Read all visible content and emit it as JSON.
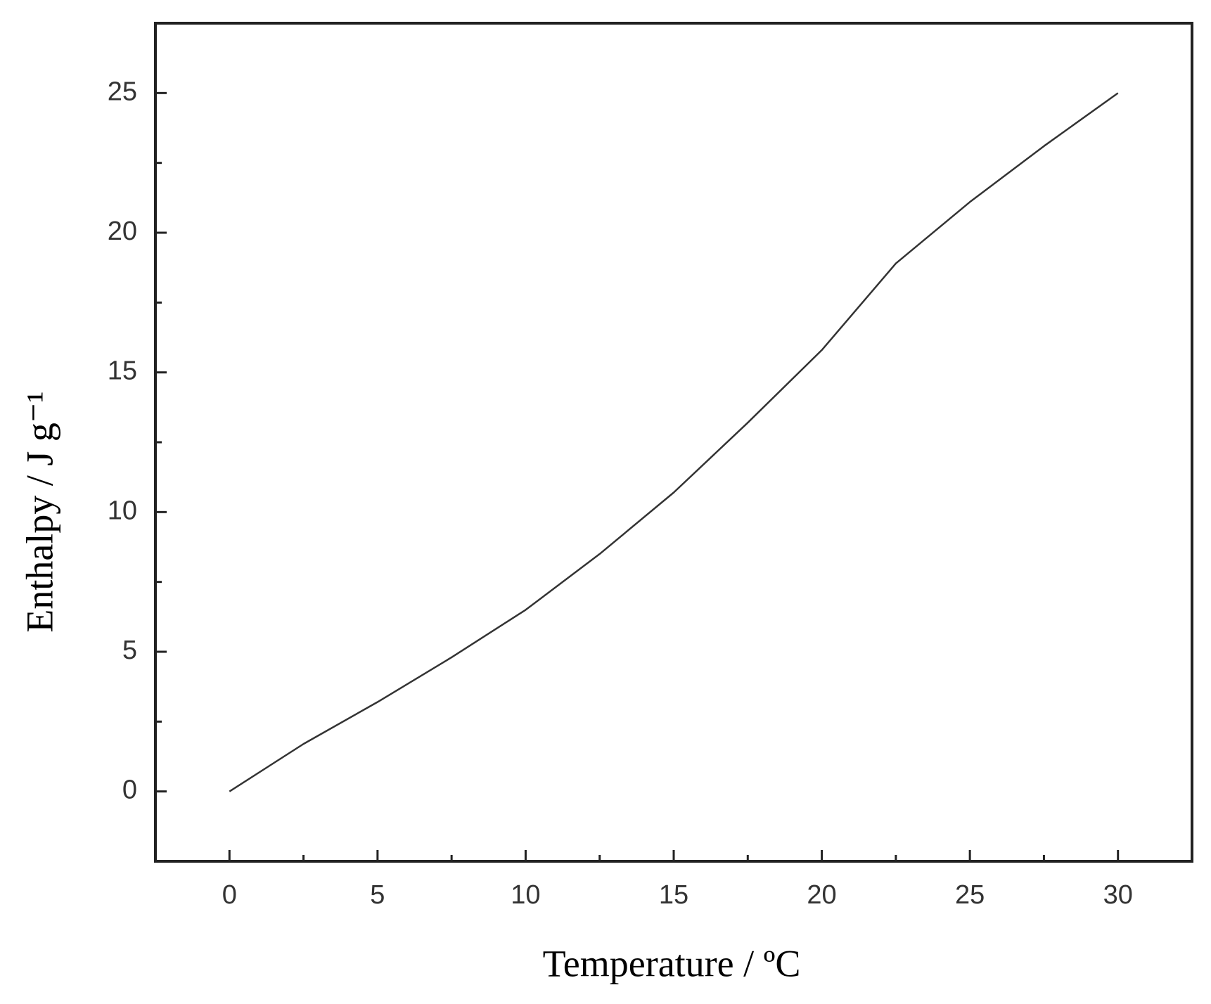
{
  "chart_data": {
    "type": "line",
    "x_label": "Temperature / ºC",
    "y_label": "Enthalpy / J g⁻¹",
    "x": [
      0,
      2.5,
      5,
      7.5,
      10,
      12.5,
      15,
      17.5,
      20,
      22.5,
      25,
      27.5,
      30
    ],
    "series": [
      {
        "name": "Enthalpy",
        "color": "#333333",
        "values": [
          0,
          1.7,
          3.2,
          4.8,
          6.5,
          8.5,
          10.7,
          13.2,
          15.8,
          18.9,
          21.1,
          23.1,
          25.0
        ]
      }
    ],
    "xlim": [
      -2.5,
      32.5
    ],
    "ylim": [
      -2.5,
      27.5
    ],
    "xticks": [
      0,
      5,
      10,
      15,
      20,
      25,
      30
    ],
    "yticks": [
      0,
      5,
      10,
      15,
      20,
      25
    ],
    "xminorticks": [
      2.5,
      7.5,
      12.5,
      17.5,
      22.5,
      27.5
    ],
    "yminorticks": [
      2.5,
      7.5,
      12.5,
      17.5,
      22.5
    ],
    "grid": false
  }
}
